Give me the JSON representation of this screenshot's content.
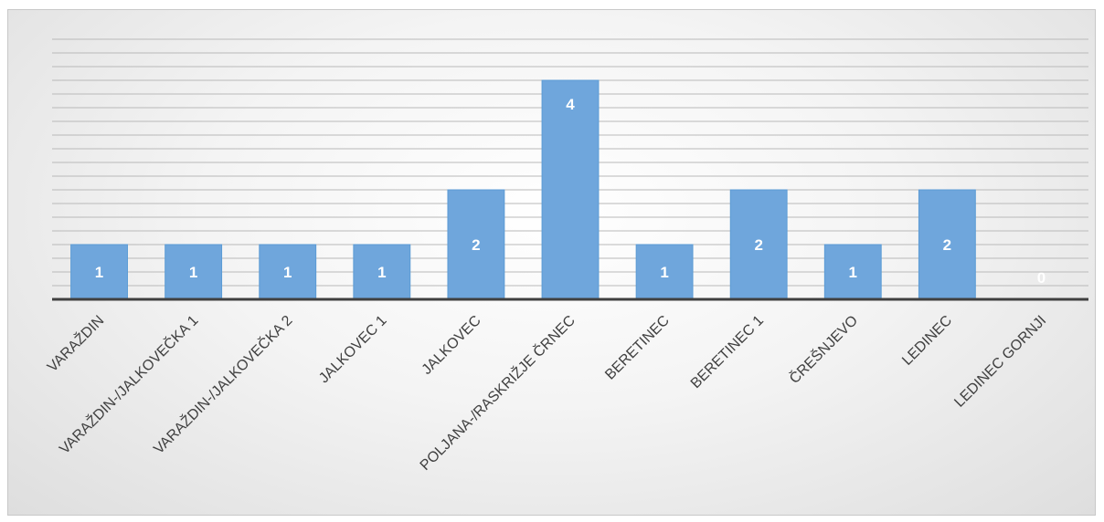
{
  "chart_data": {
    "type": "bar",
    "title": "",
    "xlabel": "",
    "ylabel": "",
    "categories": [
      "VARAŽDIN",
      "VARAŽDIN-/JALKOVEČKA 1",
      "VARAŽDIN-/JALKOVEČKA 2",
      "JALKOVEC 1",
      "JALKOVEC",
      "POLJANA-/RASKRIŽJE ČRNEC",
      "BERETINEC",
      "BERETINEC 1",
      "ČREŠNJEVO",
      "LEDINEC",
      "LEDINEC GORNJI"
    ],
    "values": [
      1,
      1,
      1,
      1,
      2,
      4,
      1,
      2,
      1,
      2,
      0
    ],
    "ylim": [
      0,
      4.75
    ],
    "grid": true,
    "gridline_step": 0.25,
    "bar_color": "#6fa6dc",
    "bar_border_color": "#5b9bd5",
    "axis_color": "#404040",
    "gridline_color": "#b9b9b9",
    "data_label_color": "#ffffff"
  }
}
